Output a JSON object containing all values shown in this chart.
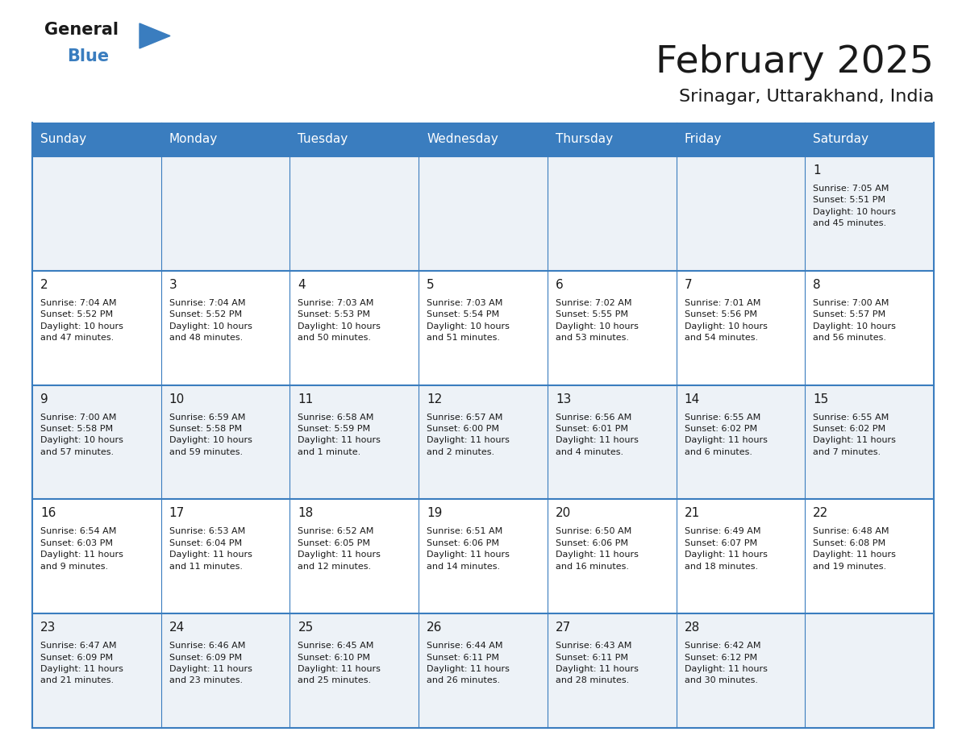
{
  "title": "February 2025",
  "subtitle": "Srinagar, Uttarakhand, India",
  "header_bg": "#3a7dbf",
  "header_text_color": "#ffffff",
  "cell_bg_odd": "#edf2f7",
  "cell_bg_even": "#ffffff",
  "border_color": "#3a7dbf",
  "title_color": "#1a1a1a",
  "subtitle_color": "#1a1a1a",
  "day_num_color": "#1a1a1a",
  "cell_text_color": "#1a1a1a",
  "days_of_week": [
    "Sunday",
    "Monday",
    "Tuesday",
    "Wednesday",
    "Thursday",
    "Friday",
    "Saturday"
  ],
  "weeks": [
    [
      {
        "day": "",
        "info": ""
      },
      {
        "day": "",
        "info": ""
      },
      {
        "day": "",
        "info": ""
      },
      {
        "day": "",
        "info": ""
      },
      {
        "day": "",
        "info": ""
      },
      {
        "day": "",
        "info": ""
      },
      {
        "day": "1",
        "info": "Sunrise: 7:05 AM\nSunset: 5:51 PM\nDaylight: 10 hours\nand 45 minutes."
      }
    ],
    [
      {
        "day": "2",
        "info": "Sunrise: 7:04 AM\nSunset: 5:52 PM\nDaylight: 10 hours\nand 47 minutes."
      },
      {
        "day": "3",
        "info": "Sunrise: 7:04 AM\nSunset: 5:52 PM\nDaylight: 10 hours\nand 48 minutes."
      },
      {
        "day": "4",
        "info": "Sunrise: 7:03 AM\nSunset: 5:53 PM\nDaylight: 10 hours\nand 50 minutes."
      },
      {
        "day": "5",
        "info": "Sunrise: 7:03 AM\nSunset: 5:54 PM\nDaylight: 10 hours\nand 51 minutes."
      },
      {
        "day": "6",
        "info": "Sunrise: 7:02 AM\nSunset: 5:55 PM\nDaylight: 10 hours\nand 53 minutes."
      },
      {
        "day": "7",
        "info": "Sunrise: 7:01 AM\nSunset: 5:56 PM\nDaylight: 10 hours\nand 54 minutes."
      },
      {
        "day": "8",
        "info": "Sunrise: 7:00 AM\nSunset: 5:57 PM\nDaylight: 10 hours\nand 56 minutes."
      }
    ],
    [
      {
        "day": "9",
        "info": "Sunrise: 7:00 AM\nSunset: 5:58 PM\nDaylight: 10 hours\nand 57 minutes."
      },
      {
        "day": "10",
        "info": "Sunrise: 6:59 AM\nSunset: 5:58 PM\nDaylight: 10 hours\nand 59 minutes."
      },
      {
        "day": "11",
        "info": "Sunrise: 6:58 AM\nSunset: 5:59 PM\nDaylight: 11 hours\nand 1 minute."
      },
      {
        "day": "12",
        "info": "Sunrise: 6:57 AM\nSunset: 6:00 PM\nDaylight: 11 hours\nand 2 minutes."
      },
      {
        "day": "13",
        "info": "Sunrise: 6:56 AM\nSunset: 6:01 PM\nDaylight: 11 hours\nand 4 minutes."
      },
      {
        "day": "14",
        "info": "Sunrise: 6:55 AM\nSunset: 6:02 PM\nDaylight: 11 hours\nand 6 minutes."
      },
      {
        "day": "15",
        "info": "Sunrise: 6:55 AM\nSunset: 6:02 PM\nDaylight: 11 hours\nand 7 minutes."
      }
    ],
    [
      {
        "day": "16",
        "info": "Sunrise: 6:54 AM\nSunset: 6:03 PM\nDaylight: 11 hours\nand 9 minutes."
      },
      {
        "day": "17",
        "info": "Sunrise: 6:53 AM\nSunset: 6:04 PM\nDaylight: 11 hours\nand 11 minutes."
      },
      {
        "day": "18",
        "info": "Sunrise: 6:52 AM\nSunset: 6:05 PM\nDaylight: 11 hours\nand 12 minutes."
      },
      {
        "day": "19",
        "info": "Sunrise: 6:51 AM\nSunset: 6:06 PM\nDaylight: 11 hours\nand 14 minutes."
      },
      {
        "day": "20",
        "info": "Sunrise: 6:50 AM\nSunset: 6:06 PM\nDaylight: 11 hours\nand 16 minutes."
      },
      {
        "day": "21",
        "info": "Sunrise: 6:49 AM\nSunset: 6:07 PM\nDaylight: 11 hours\nand 18 minutes."
      },
      {
        "day": "22",
        "info": "Sunrise: 6:48 AM\nSunset: 6:08 PM\nDaylight: 11 hours\nand 19 minutes."
      }
    ],
    [
      {
        "day": "23",
        "info": "Sunrise: 6:47 AM\nSunset: 6:09 PM\nDaylight: 11 hours\nand 21 minutes."
      },
      {
        "day": "24",
        "info": "Sunrise: 6:46 AM\nSunset: 6:09 PM\nDaylight: 11 hours\nand 23 minutes."
      },
      {
        "day": "25",
        "info": "Sunrise: 6:45 AM\nSunset: 6:10 PM\nDaylight: 11 hours\nand 25 minutes."
      },
      {
        "day": "26",
        "info": "Sunrise: 6:44 AM\nSunset: 6:11 PM\nDaylight: 11 hours\nand 26 minutes."
      },
      {
        "day": "27",
        "info": "Sunrise: 6:43 AM\nSunset: 6:11 PM\nDaylight: 11 hours\nand 28 minutes."
      },
      {
        "day": "28",
        "info": "Sunrise: 6:42 AM\nSunset: 6:12 PM\nDaylight: 11 hours\nand 30 minutes."
      },
      {
        "day": "",
        "info": ""
      }
    ]
  ],
  "logo_general_color": "#1a1a1a",
  "logo_blue_color": "#3a7dbf",
  "figsize": [
    11.88,
    9.18
  ],
  "dpi": 100
}
